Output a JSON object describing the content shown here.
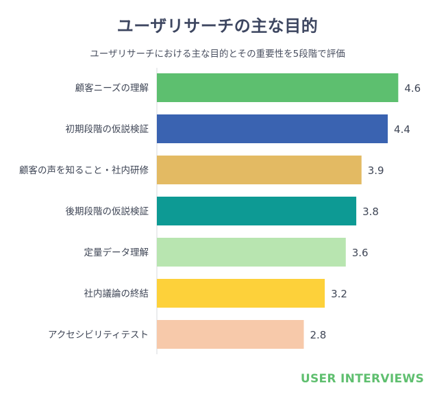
{
  "header": {
    "title": "ユーザリサーチの主な目的",
    "subtitle": "ユーザリサーチにおける主な目的とその重要性を5段階で評価"
  },
  "brand": {
    "text": "USER INTERVIEWS",
    "color": "#5fbf6f"
  },
  "chart_data": {
    "type": "bar",
    "orientation": "horizontal",
    "title": "ユーザリサーチの主な目的",
    "subtitle": "ユーザリサーチにおける主な目的とその重要性を5段階で評価",
    "categories": [
      "顧客ニーズの理解",
      "初期段階の仮説検証",
      "顧客の声を知ること・社内研修",
      "後期段階の仮説検証",
      "定量データ理解",
      "社内議論の終結",
      "アクセシビリティテスト"
    ],
    "values": [
      4.6,
      4.4,
      3.9,
      3.8,
      3.6,
      3.2,
      2.8
    ],
    "value_labels": [
      "4.6",
      "4.4",
      "3.9",
      "3.8",
      "3.6",
      "3.2",
      "2.8"
    ],
    "colors": [
      "#5dbf6f",
      "#3a63b1",
      "#e3ba63",
      "#0d9a94",
      "#b8e5b0",
      "#fdd13a",
      "#f7c9aa"
    ],
    "xlim": [
      0,
      5
    ],
    "grid": false,
    "legend": "none"
  }
}
